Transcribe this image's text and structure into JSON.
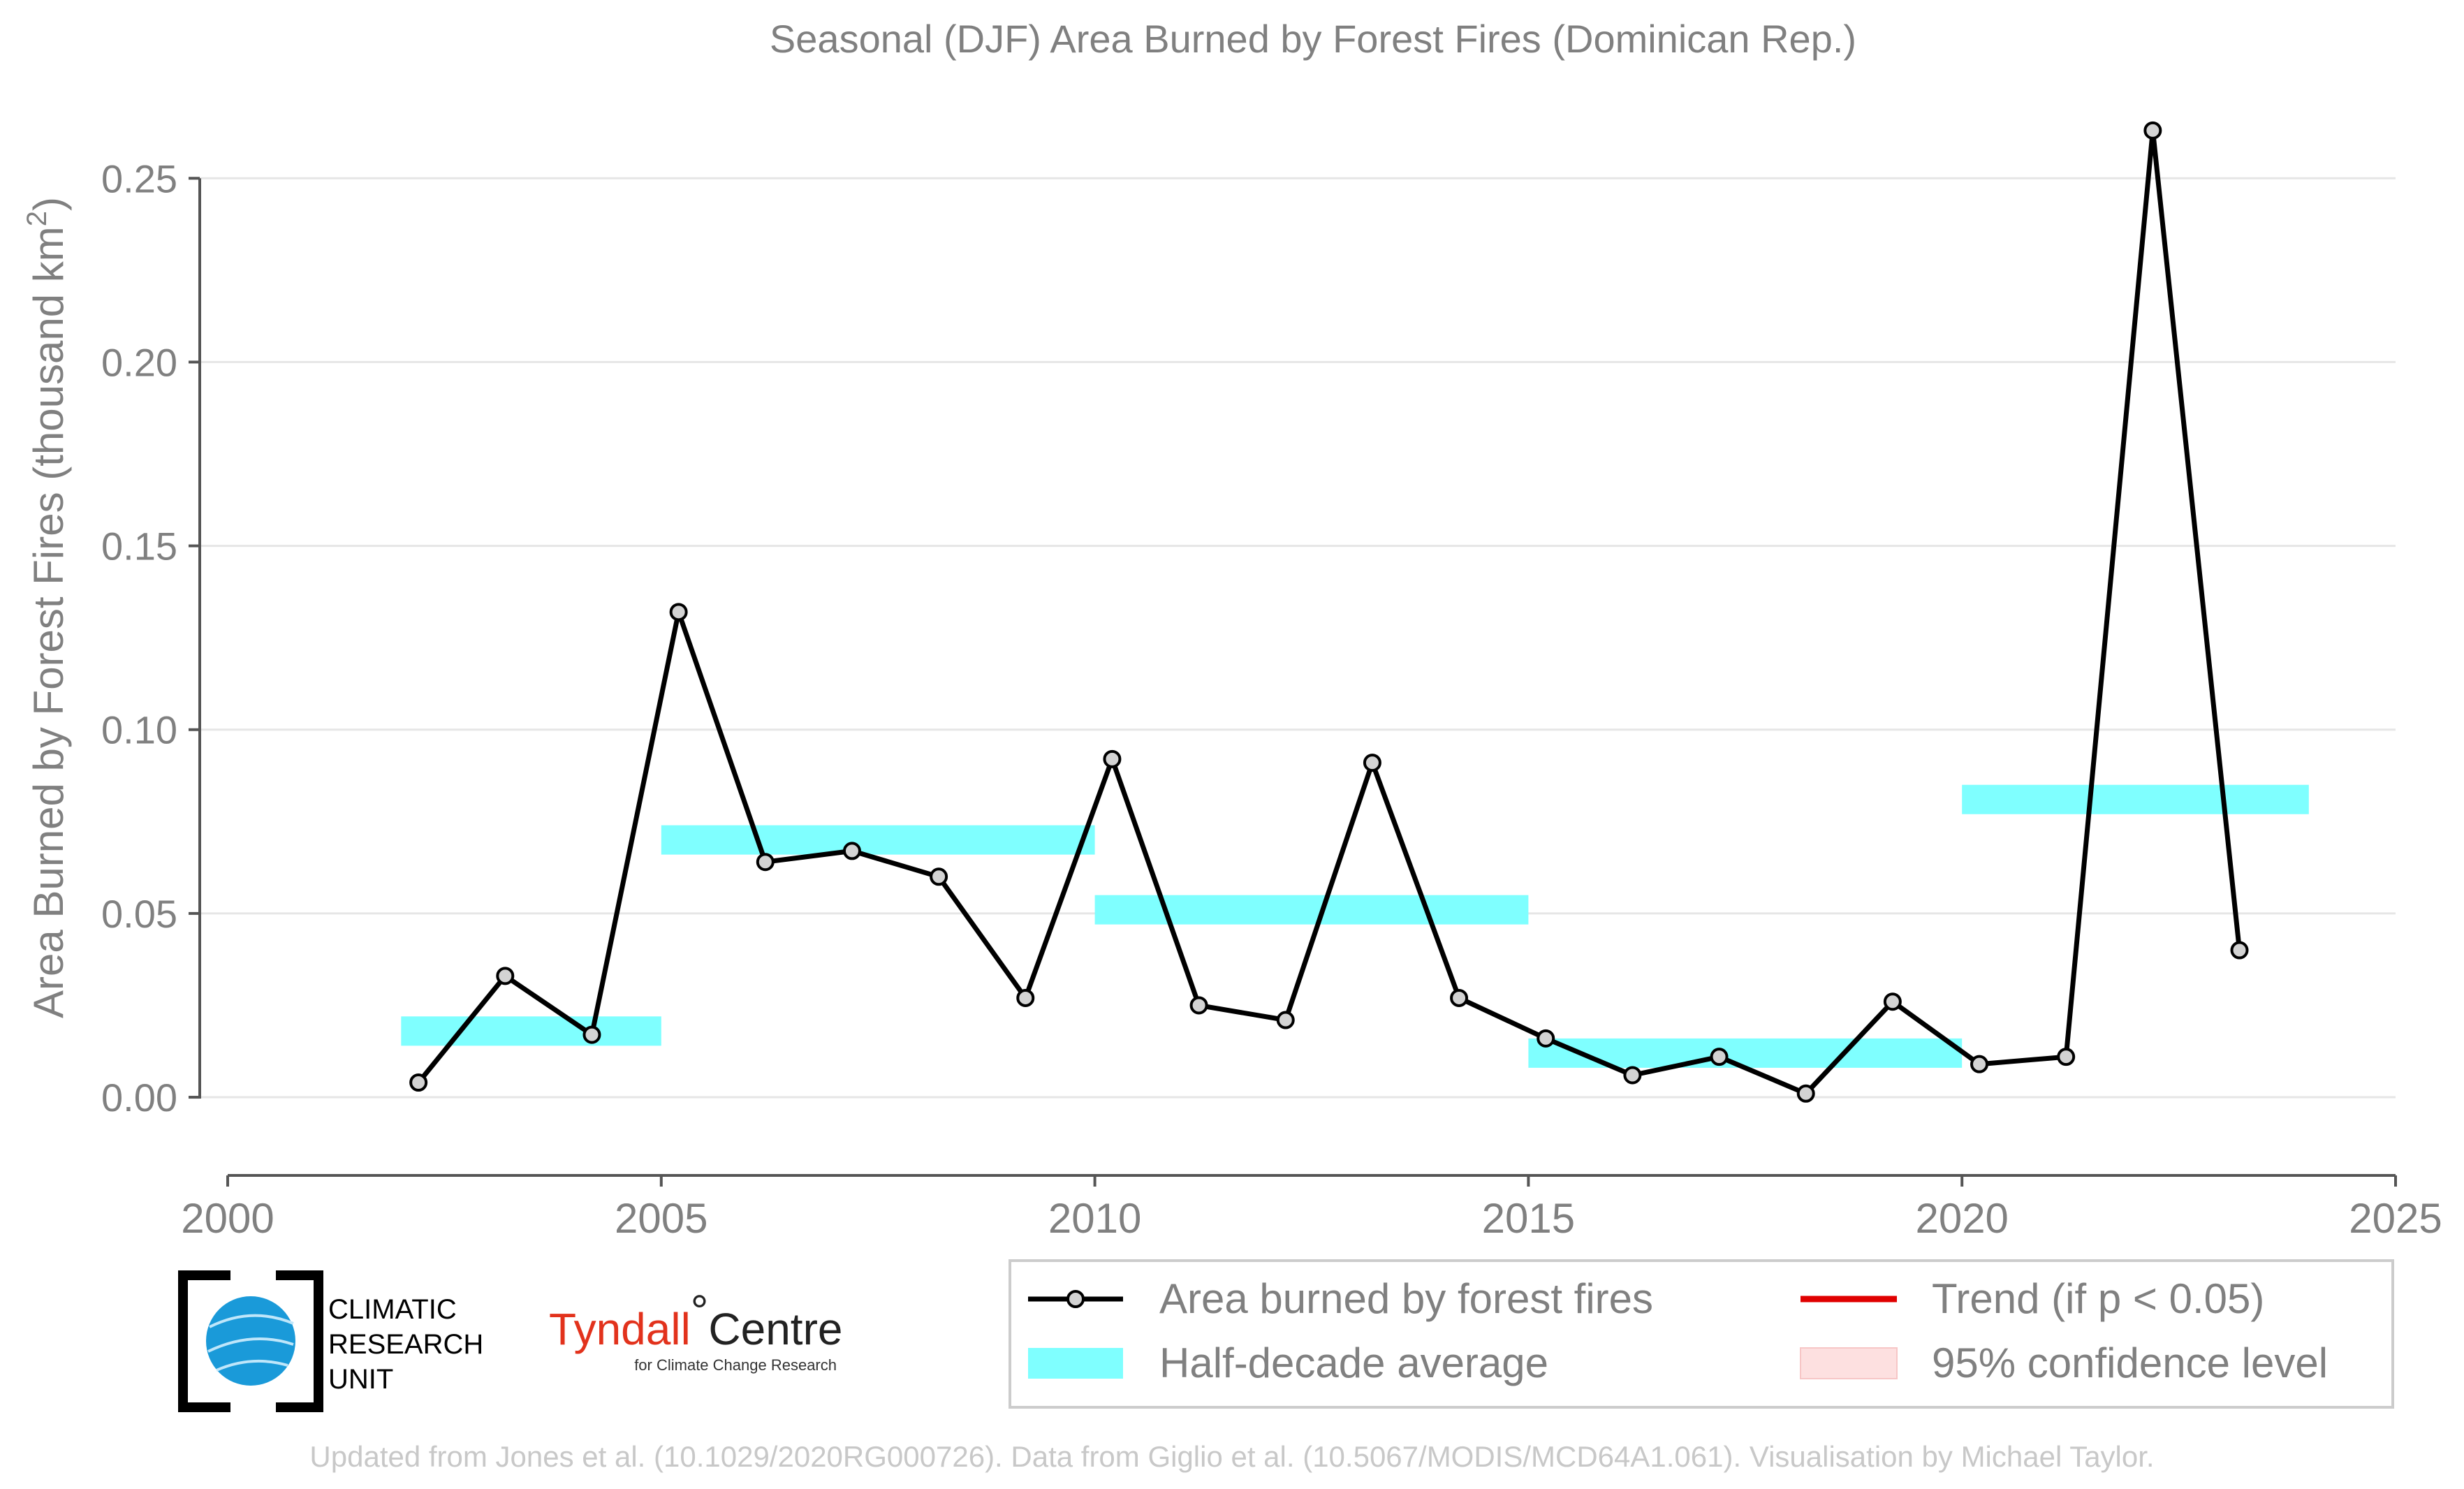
{
  "chart_data": {
    "type": "line",
    "title": "Seasonal (DJF) Area Burned by Forest Fires (Dominican Rep.)",
    "ylabel": "Area Burned by Forest Fires (thousand km",
    "ylabel_superscript": "2",
    "ylabel_suffix": ")",
    "xlabel": "",
    "xlim": [
      2000,
      2025
    ],
    "ylim": [
      -0.015,
      0.27
    ],
    "x_ticks": [
      2000,
      2005,
      2010,
      2015,
      2020,
      2025
    ],
    "y_ticks": [
      0.0,
      0.05,
      0.1,
      0.15,
      0.2,
      0.25
    ],
    "y_tick_labels": [
      "0.00",
      "0.05",
      "0.10",
      "0.15",
      "0.20",
      "0.25"
    ],
    "grid": "horizontal",
    "series": [
      {
        "name": "Area burned by forest fires",
        "color": "#000000",
        "marker_fill": "#d3d3d3",
        "x": [
          2002.2,
          2003.2,
          2004.2,
          2005.2,
          2006.2,
          2007.2,
          2008.2,
          2009.2,
          2010.2,
          2011.2,
          2012.2,
          2013.2,
          2014.2,
          2015.2,
          2016.2,
          2017.2,
          2018.2,
          2019.2,
          2020.2,
          2021.2,
          2022.2,
          2023.2
        ],
        "values": [
          0.004,
          0.033,
          0.017,
          0.132,
          0.064,
          0.067,
          0.06,
          0.027,
          0.092,
          0.025,
          0.021,
          0.091,
          0.027,
          0.016,
          0.006,
          0.011,
          0.001,
          0.026,
          0.009,
          0.011,
          0.263,
          0.04
        ]
      }
    ],
    "half_decade_averages": {
      "name": "Half-decade average",
      "color": "#7fffff",
      "segments": [
        {
          "x_start": 2002,
          "x_end": 2005,
          "value": 0.018
        },
        {
          "x_start": 2005,
          "x_end": 2010,
          "value": 0.07
        },
        {
          "x_start": 2010,
          "x_end": 2015,
          "value": 0.051
        },
        {
          "x_start": 2015,
          "x_end": 2020,
          "value": 0.012
        },
        {
          "x_start": 2020,
          "x_end": 2024,
          "value": 0.081
        }
      ]
    },
    "legend": {
      "placement": "bottom-right",
      "entries": [
        {
          "label": "Area burned by forest fires",
          "kind": "line-marker",
          "color": "#000000"
        },
        {
          "label": "Trend (if p < 0.05)",
          "kind": "line",
          "color": "#e00000"
        },
        {
          "label": "Half-decade average",
          "kind": "band",
          "color": "#7fffff"
        },
        {
          "label": "95% confidence level",
          "kind": "band",
          "color": "#fde0e0"
        }
      ]
    }
  },
  "logos": {
    "cru": {
      "line1": "CLIMATIC",
      "line2": "RESEARCH",
      "line3": "UNIT"
    },
    "tyndall": {
      "name": "Tyndall",
      "degree": "°",
      "centre": "Centre",
      "tagline": "for Climate Change Research"
    }
  },
  "footer": "Updated from Jones et al. (10.1029/2020RG000726). Data from Giglio et al. (10.5067/MODIS/MCD64A1.061). Visualisation by Michael Taylor."
}
